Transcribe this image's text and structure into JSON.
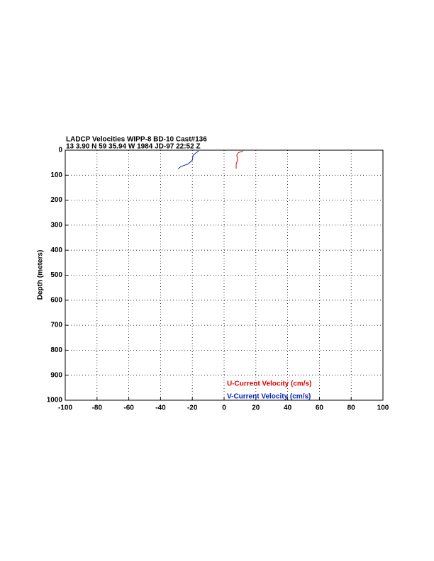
{
  "chart_data": {
    "type": "line",
    "title": "LADCP Velocities WIPP-8 BD-10 Cast#136",
    "subtitle": "13  3.90 N  59 35.94 W  1984 JD-97 22:52 Z",
    "y_label": "Depth (meters)",
    "y": [
      3,
      10,
      20,
      40,
      55,
      65,
      74
    ],
    "series": [
      {
        "name": "U-Current Velocity (cm/s)",
        "color": "#e00000",
        "values": [
          12,
          9,
          8,
          8.5,
          7.6,
          7.6,
          7.6
        ]
      },
      {
        "name": "V-Current Velocity (cm/s)",
        "color": "#0020c0",
        "values": [
          -16,
          -17.5,
          -19.5,
          -20,
          -22.5,
          -27,
          -29
        ]
      }
    ],
    "xlim": [
      -100,
      100
    ],
    "xticks": [
      -100,
      -80,
      -60,
      -40,
      -20,
      0,
      20,
      40,
      60,
      80,
      100
    ],
    "ylim": [
      1000,
      0
    ],
    "yticks": [
      0,
      100,
      200,
      300,
      400,
      500,
      600,
      700,
      800,
      900,
      1000
    ],
    "grid": true
  }
}
